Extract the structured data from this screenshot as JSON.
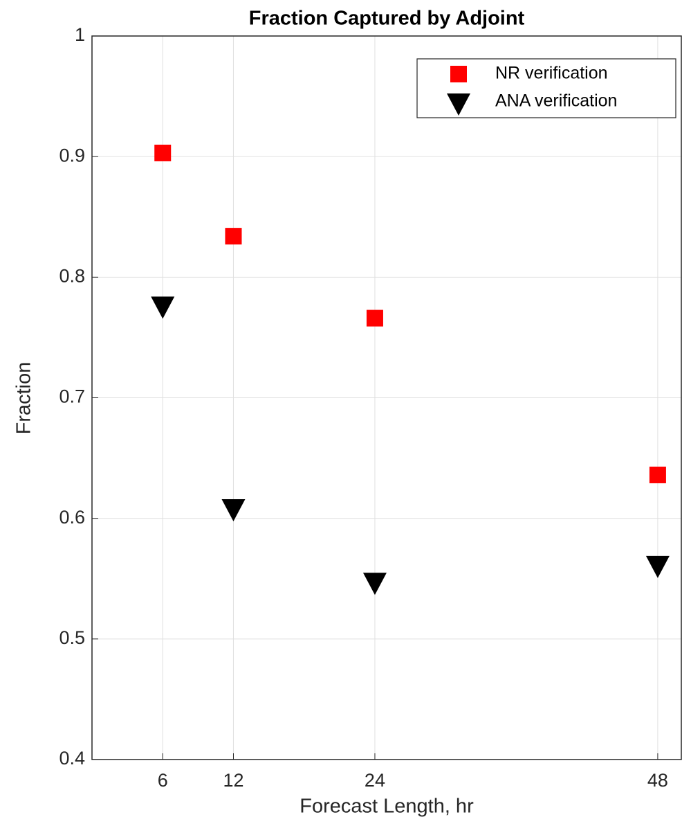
{
  "chart_data": {
    "type": "scatter",
    "title": "Fraction Captured by Adjoint",
    "x_label": "Forecast Length, hr",
    "y_label": "Fraction",
    "xlim": [
      0,
      50
    ],
    "xticks": [
      6,
      12,
      24,
      48
    ],
    "ylim": [
      0.4,
      1
    ],
    "yticks": [
      0.4,
      0.5,
      0.6,
      0.7,
      0.8,
      0.9,
      1
    ],
    "grid": true,
    "legend": "top-right",
    "series": [
      {
        "name": "NR verification",
        "color": "#ff0000",
        "marker": "square",
        "x": [
          6,
          12,
          24,
          48
        ],
        "values": [
          0.903,
          0.834,
          0.766,
          0.636
        ]
      },
      {
        "name": "ANA verification",
        "color": "#000000",
        "marker": "triangle-down",
        "x": [
          6,
          12,
          24,
          48
        ],
        "values": [
          0.777,
          0.609,
          0.548,
          0.562
        ]
      }
    ]
  }
}
